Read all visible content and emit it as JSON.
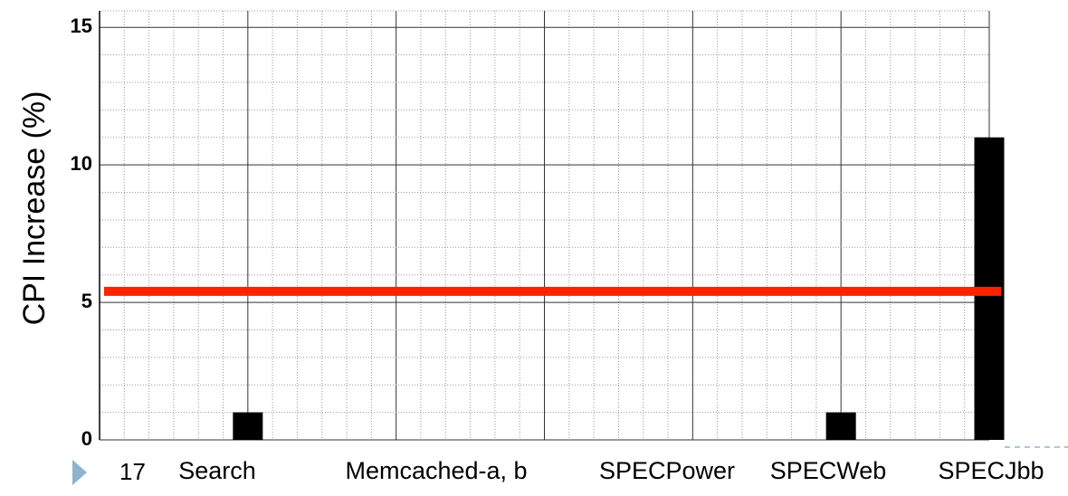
{
  "chart_data": {
    "type": "bar",
    "ylabel": "CPI Increase (%)",
    "categories": [
      "Search",
      "Memcached-a, b",
      "SPECPower",
      "SPECWeb",
      "SPECJbb"
    ],
    "values": [
      1,
      0,
      0,
      1,
      11
    ],
    "color": "#000000",
    "ylim": [
      0,
      15.6
    ],
    "yticks": [
      0,
      5,
      10,
      15
    ],
    "minor_yticks": [
      1,
      2,
      3,
      4,
      6,
      7,
      8,
      9,
      11,
      12,
      13,
      14,
      15.6
    ],
    "grid": true,
    "reference_line": {
      "value": 5.4,
      "color": "#ff2200"
    }
  },
  "slide_number": "17"
}
